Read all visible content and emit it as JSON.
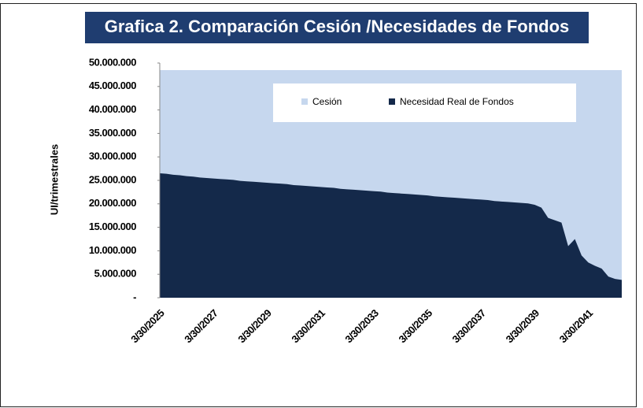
{
  "chart_data": {
    "type": "area",
    "title": "Grafica 2. Comparación Cesión /Necesidades de Fondos",
    "ylabel": "UI/trimestrales",
    "categories": [
      "3/30/2025",
      null,
      null,
      null,
      null,
      null,
      null,
      null,
      "3/30/2027",
      null,
      null,
      null,
      null,
      null,
      null,
      null,
      "3/30/2029",
      null,
      null,
      null,
      null,
      null,
      null,
      null,
      "3/30/2031",
      null,
      null,
      null,
      null,
      null,
      null,
      null,
      "3/30/2033",
      null,
      null,
      null,
      null,
      null,
      null,
      null,
      "3/30/2035",
      null,
      null,
      null,
      null,
      null,
      null,
      null,
      "3/30/2037",
      null,
      null,
      null,
      null,
      null,
      null,
      null,
      "3/30/2039",
      null,
      null,
      null,
      null,
      null,
      null,
      null,
      "3/30/2041",
      null,
      null,
      null,
      null,
      null
    ],
    "series": [
      {
        "name": "Cesión",
        "color": "#c6d7ee",
        "values": [
          48500000,
          48500000,
          48500000,
          48500000,
          48500000,
          48500000,
          48500000,
          48500000,
          48500000,
          48500000,
          48500000,
          48500000,
          48500000,
          48500000,
          48500000,
          48500000,
          48500000,
          48500000,
          48500000,
          48500000,
          48500000,
          48500000,
          48500000,
          48500000,
          48500000,
          48500000,
          48500000,
          48500000,
          48500000,
          48500000,
          48500000,
          48500000,
          48500000,
          48500000,
          48500000,
          48500000,
          48500000,
          48500000,
          48500000,
          48500000,
          48500000,
          48500000,
          48500000,
          48500000,
          48500000,
          48500000,
          48500000,
          48500000,
          48500000,
          48500000,
          48500000,
          48500000,
          48500000,
          48500000,
          48500000,
          48500000,
          48500000,
          48500000,
          48500000,
          48500000,
          48500000,
          48500000,
          48500000,
          48500000,
          48500000,
          48500000,
          48500000,
          48500000,
          48500000,
          48500000
        ]
      },
      {
        "name": "Necesidad Real de Fondos",
        "color": "#14294a",
        "values": [
          26500000,
          26400000,
          26200000,
          26100000,
          25900000,
          25800000,
          25600000,
          25500000,
          25400000,
          25300000,
          25200000,
          25100000,
          24900000,
          24800000,
          24700000,
          24600000,
          24500000,
          24400000,
          24300000,
          24200000,
          24000000,
          23900000,
          23800000,
          23700000,
          23600000,
          23500000,
          23400000,
          23200000,
          23100000,
          23000000,
          22900000,
          22800000,
          22700000,
          22600000,
          22400000,
          22300000,
          22200000,
          22100000,
          22000000,
          21900000,
          21800000,
          21600000,
          21500000,
          21400000,
          21300000,
          21200000,
          21100000,
          21000000,
          20900000,
          20800000,
          20600000,
          20500000,
          20400000,
          20300000,
          20200000,
          20100000,
          19800000,
          19200000,
          17000000,
          16500000,
          16000000,
          11000000,
          12500000,
          9000000,
          7500000,
          6800000,
          6200000,
          4500000,
          4000000,
          3800000
        ]
      }
    ],
    "ylim": [
      0,
      50000000
    ],
    "yticks": [
      {
        "value": 0,
        "label": "-"
      },
      {
        "value": 5000000,
        "label": "5.000.000"
      },
      {
        "value": 10000000,
        "label": "10.000.000"
      },
      {
        "value": 15000000,
        "label": "15.000.000"
      },
      {
        "value": 20000000,
        "label": "20.000.000"
      },
      {
        "value": 25000000,
        "label": "25.000.000"
      },
      {
        "value": 30000000,
        "label": "30.000.000"
      },
      {
        "value": 35000000,
        "label": "35.000.000"
      },
      {
        "value": 40000000,
        "label": "40.000.000"
      },
      {
        "value": 45000000,
        "label": "45.000.000"
      },
      {
        "value": 50000000,
        "label": "50.000.000"
      }
    ],
    "legend": "top-right"
  }
}
